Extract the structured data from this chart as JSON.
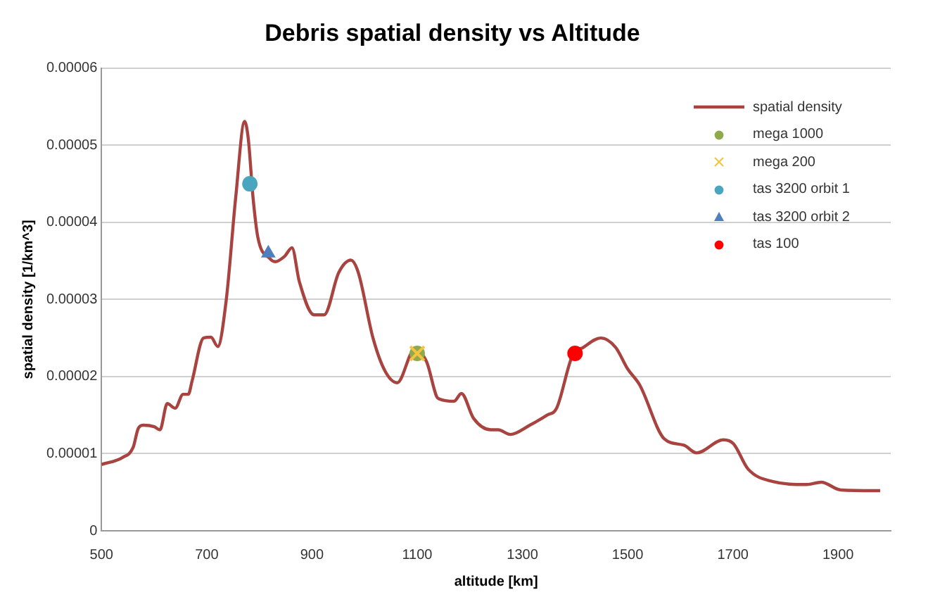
{
  "chart_data": {
    "type": "line",
    "title": "Debris spatial density vs Altitude",
    "xlabel": "altitude [km]",
    "ylabel": "spatial density [1/km^3]",
    "xlim": [
      500,
      2000
    ],
    "xticks": [
      500,
      700,
      900,
      1100,
      1300,
      1500,
      1700,
      1900
    ],
    "ylim": [
      0,
      6e-05
    ],
    "yticks": [
      0,
      {
        "value": 1e-05,
        "label": "0.00001"
      },
      {
        "value": 2e-05,
        "label": "0.00002"
      },
      {
        "value": 3e-05,
        "label": "0.00003"
      },
      {
        "value": 4e-05,
        "label": "0.00004"
      },
      {
        "value": 5e-05,
        "label": "0.00005"
      },
      {
        "value": 6e-05,
        "label": "0.00006"
      }
    ],
    "grid": "y",
    "legend": "top right",
    "series": [
      {
        "name": "spatial density",
        "color": "#a8433f",
        "marker": "none",
        "x": [
          500,
          540,
          560,
          570,
          580,
          600,
          611,
          625,
          640,
          655,
          665,
          672,
          694,
          708,
          721,
          737,
          755,
          772,
          779,
          788,
          797,
          820,
          830,
          848,
          862,
          876,
          904,
          923,
          951,
          974,
          988,
          1016,
          1039,
          1062,
          1095,
          1118,
          1137,
          1142,
          1170,
          1184,
          1207,
          1240,
          1254,
          1277,
          1314,
          1347,
          1365,
          1395,
          1416,
          1449,
          1477,
          1500,
          1523,
          1570,
          1607,
          1631,
          1682,
          1701,
          1729,
          1775,
          1840,
          1868,
          1905,
          1980
        ],
        "values": [
          8.6e-06,
          9.5e-06,
          1.08e-05,
          1.33e-05,
          1.37e-05,
          1.35e-05,
          1.31e-05,
          1.65e-05,
          1.59e-05,
          1.77e-05,
          1.77e-05,
          1.94e-05,
          2.5e-05,
          2.51e-05,
          2.39e-05,
          2.99e-05,
          4.32e-05,
          5.31e-05,
          5.08e-05,
          4.32e-05,
          3.81e-05,
          3.53e-05,
          3.49e-05,
          3.56e-05,
          3.67e-05,
          3.23e-05,
          2.8e-05,
          2.8e-05,
          3.35e-05,
          3.51e-05,
          3.35e-05,
          2.5e-05,
          2.07e-05,
          1.92e-05,
          2.35e-05,
          2.19e-05,
          1.74e-05,
          1.71e-05,
          1.68e-05,
          1.78e-05,
          1.46e-05,
          1.31e-05,
          1.31e-05,
          1.25e-05,
          1.37e-05,
          1.5e-05,
          1.59e-05,
          2.27e-05,
          2.38e-05,
          2.5e-05,
          2.38e-05,
          2.1e-05,
          1.89e-05,
          1.19e-05,
          1.11e-05,
          1.01e-05,
          1.18e-05,
          1.13e-05,
          8e-06,
          6.4e-06,
          6e-06,
          6.3e-06,
          5.3e-06,
          5.2e-06
        ]
      },
      {
        "name": "mega 1000",
        "type": "scatter",
        "color": "#8faa4c",
        "marker": "circle",
        "x": [
          1100
        ],
        "values": [
          2.3e-05
        ]
      },
      {
        "name": "mega 200",
        "type": "scatter",
        "color": "#f5c242",
        "marker": "cross",
        "x": [
          1100
        ],
        "values": [
          2.3e-05
        ]
      },
      {
        "name": "tas 3200 orbit 1",
        "type": "scatter",
        "color": "#4aa5be",
        "marker": "circle",
        "x": [
          782
        ],
        "values": [
          4.5e-05
        ]
      },
      {
        "name": "tas 3200 orbit 2",
        "type": "scatter",
        "color": "#4f7fbd",
        "marker": "triangle",
        "x": [
          817
        ],
        "values": [
          3.6e-05
        ]
      },
      {
        "name": "tas 100",
        "type": "scatter",
        "color": "#ff0000",
        "marker": "circle",
        "x": [
          1400
        ],
        "values": [
          2.3e-05
        ]
      }
    ]
  }
}
